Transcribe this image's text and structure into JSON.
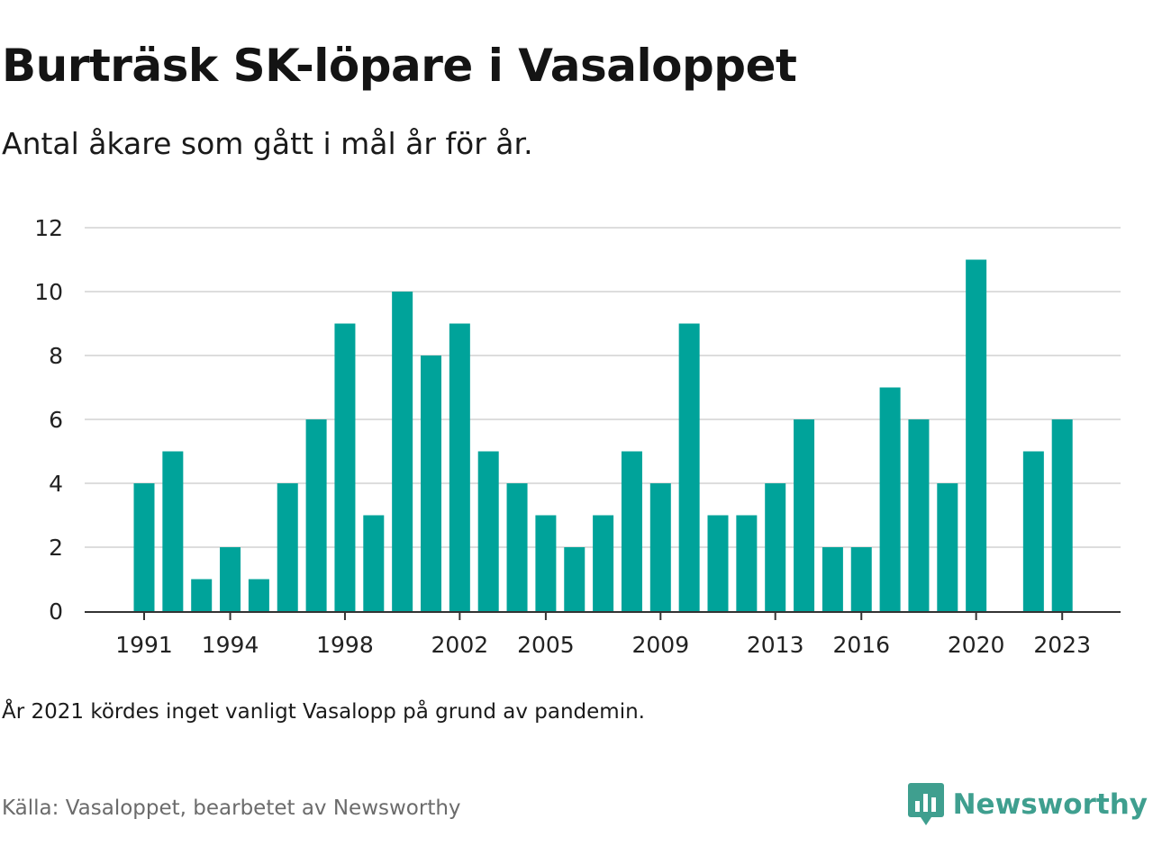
{
  "title": "Burträsk SK-löpare i Vasaloppet",
  "subtitle": "Antal åkare som gått i mål år för år.",
  "note": "År 2021 kördes inget vanligt Vasalopp på grund av pandemin.",
  "source": "Källa: Vasaloppet, bearbetet av Newsworthy",
  "brand": {
    "name": "Newsworthy",
    "icon": "newsworthy-logo-icon",
    "color": "#3f9f8f"
  },
  "chart_data": {
    "type": "bar",
    "x": [
      1991,
      1992,
      1993,
      1994,
      1995,
      1996,
      1997,
      1998,
      1999,
      2000,
      2001,
      2002,
      2003,
      2004,
      2005,
      2006,
      2007,
      2008,
      2009,
      2010,
      2011,
      2012,
      2013,
      2014,
      2015,
      2016,
      2017,
      2018,
      2019,
      2020,
      2021,
      2022,
      2023
    ],
    "values": [
      4,
      5,
      1,
      2,
      1,
      4,
      6,
      9,
      3,
      10,
      8,
      9,
      5,
      4,
      3,
      2,
      3,
      5,
      4,
      9,
      3,
      3,
      4,
      6,
      2,
      2,
      7,
      6,
      4,
      11,
      null,
      5,
      6
    ],
    "x_tick_labels": [
      "1991",
      "1994",
      "1998",
      "2002",
      "2005",
      "2009",
      "2013",
      "2016",
      "2020",
      "2023"
    ],
    "y_ticks": [
      0,
      2,
      4,
      6,
      8,
      10,
      12
    ],
    "ylim": [
      0,
      12
    ],
    "bar_color": "#00a39a",
    "grid": true
  }
}
